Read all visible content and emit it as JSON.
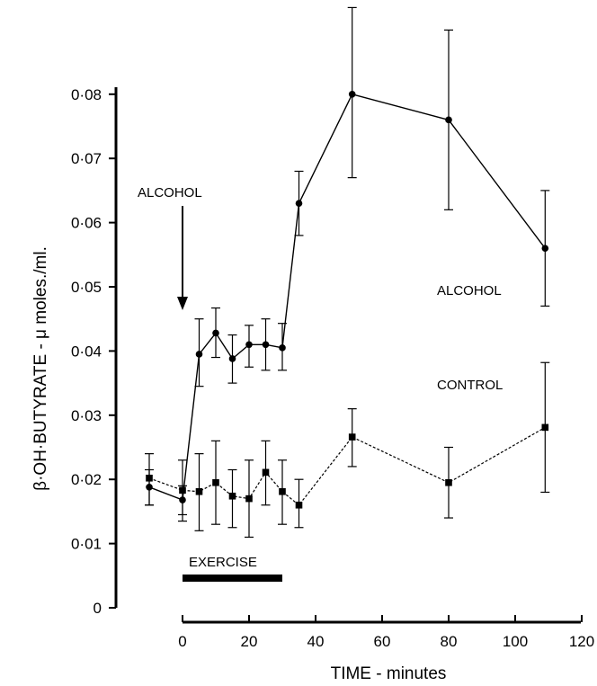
{
  "chart_data": {
    "type": "line",
    "xlabel": "TIME - minutes",
    "ylabel": "β·OH·BUTYRATE - μ moles./ml.",
    "xlim": [
      -10,
      120
    ],
    "ylim": [
      0,
      0.085
    ],
    "x_ticks": [
      {
        "value": 0,
        "label": "0"
      },
      {
        "value": 20,
        "label": "20"
      },
      {
        "value": 40,
        "label": "40"
      },
      {
        "value": 60,
        "label": "60"
      },
      {
        "value": 80,
        "label": "80"
      },
      {
        "value": 100,
        "label": "100"
      },
      {
        "value": 120,
        "label": "120"
      }
    ],
    "y_ticks": [
      {
        "value": 0,
        "label": "0"
      },
      {
        "value": 0.01,
        "label": "0·01"
      },
      {
        "value": 0.02,
        "label": "0·02"
      },
      {
        "value": 0.03,
        "label": "0·03"
      },
      {
        "value": 0.04,
        "label": "0·04"
      },
      {
        "value": 0.05,
        "label": "0·05"
      },
      {
        "value": 0.06,
        "label": "0·06"
      },
      {
        "value": 0.07,
        "label": "0·07"
      },
      {
        "value": 0.08,
        "label": "0·08"
      }
    ],
    "series": [
      {
        "name": "ALCOHOL",
        "marker": "circle",
        "line_style": "solid",
        "x": [
          -10,
          0,
          5,
          10,
          15,
          20,
          25,
          30,
          35,
          51,
          80,
          109
        ],
        "y": [
          0.0188,
          0.0168,
          0.0395,
          0.0428,
          0.0388,
          0.041,
          0.041,
          0.0405,
          0.063,
          0.08,
          0.076,
          0.056
        ],
        "err_low": [
          0.016,
          0.0145,
          0.0345,
          0.039,
          0.035,
          0.0375,
          0.037,
          0.037,
          0.058,
          0.067,
          0.062,
          0.047
        ],
        "err_high": [
          0.0215,
          0.019,
          0.045,
          0.0467,
          0.0425,
          0.044,
          0.045,
          0.0443,
          0.068,
          0.0935,
          0.09,
          0.065
        ]
      },
      {
        "name": "CONTROL",
        "marker": "square",
        "line_style": "dashed",
        "x": [
          -10,
          0,
          5,
          10,
          15,
          20,
          25,
          30,
          35,
          51,
          80,
          109
        ],
        "y": [
          0.0202,
          0.0183,
          0.0181,
          0.0195,
          0.0174,
          0.017,
          0.0211,
          0.0181,
          0.016,
          0.0266,
          0.0195,
          0.0281
        ],
        "err_low": [
          0.016,
          0.0135,
          0.012,
          0.013,
          0.0125,
          0.011,
          0.016,
          0.013,
          0.0125,
          0.022,
          0.014,
          0.018
        ],
        "err_high": [
          0.024,
          0.023,
          0.024,
          0.026,
          0.0215,
          0.023,
          0.026,
          0.023,
          0.02,
          0.031,
          0.025,
          0.0382
        ]
      }
    ],
    "annotations": {
      "alcohol_marker_label": "ALCOHOL",
      "alcohol_marker_time": 0,
      "exercise_label": "EXERCISE",
      "exercise_start": 0,
      "exercise_end": 30,
      "alcohol_series_label": "ALCOHOL",
      "control_series_label": "CONTROL"
    }
  }
}
